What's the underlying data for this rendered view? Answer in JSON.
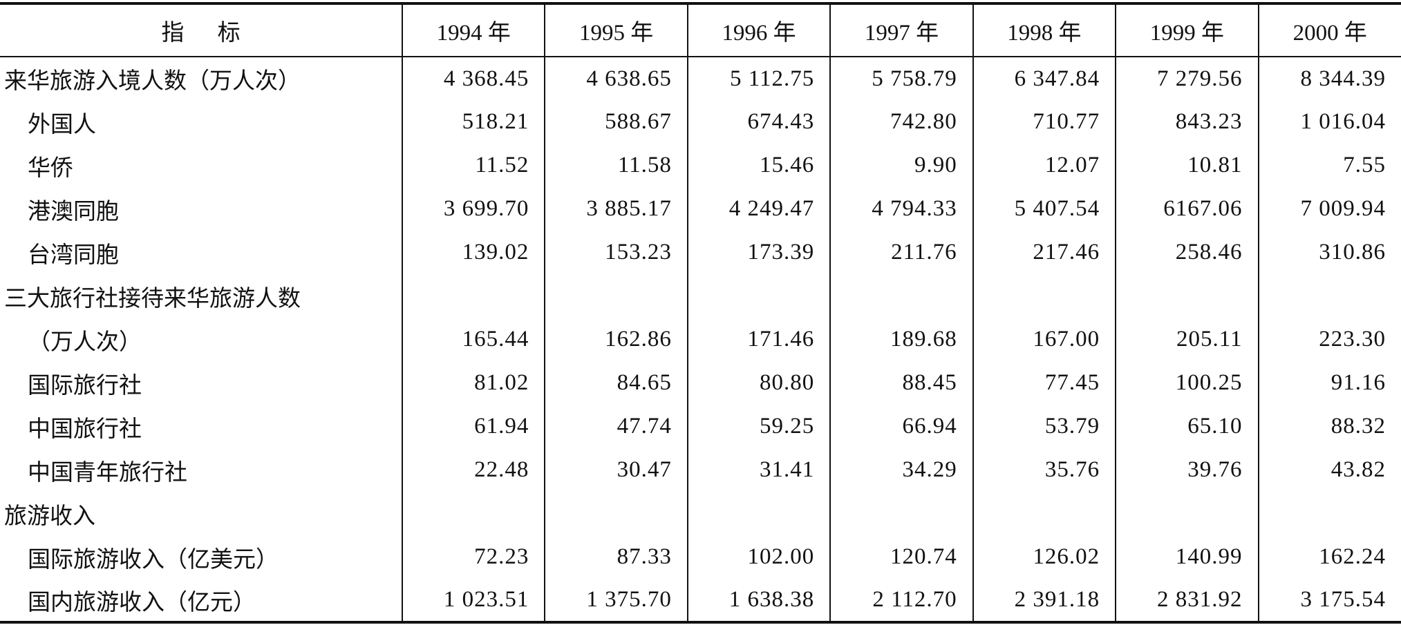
{
  "table": {
    "header": [
      "指 标",
      "1994 年",
      "1995 年",
      "1996 年",
      "1997 年",
      "1998 年",
      "1999 年",
      "2000 年"
    ],
    "rows": [
      [
        "来华旅游入境人数（万人次）",
        "4 368.45",
        "4 638.65",
        "5 112.75",
        "5 758.79",
        "6 347.84",
        "7 279.56",
        "8 344.39"
      ],
      [
        "外国人",
        "518.21",
        "588.67",
        "674.43",
        "742.80",
        "710.77",
        "843.23",
        "1 016.04"
      ],
      [
        "华侨",
        "11.52",
        "11.58",
        "15.46",
        "9.90",
        "12.07",
        "10.81",
        "7.55"
      ],
      [
        "港澳同胞",
        "3 699.70",
        "3 885.17",
        "4 249.47",
        "4 794.33",
        "5 407.54",
        "6167.06",
        "7 009.94"
      ],
      [
        "台湾同胞",
        "139.02",
        "153.23",
        "173.39",
        "211.76",
        "217.46",
        "258.46",
        "310.86"
      ],
      [
        "三大旅行社接待来华旅游人数"
      ],
      [
        "（万人次）",
        "165.44",
        "162.86",
        "171.46",
        "189.68",
        "167.00",
        "205.11",
        "223.30"
      ],
      [
        "国际旅行社",
        "81.02",
        "84.65",
        "80.80",
        "88.45",
        "77.45",
        "100.25",
        "91.16"
      ],
      [
        "中国旅行社",
        "61.94",
        "47.74",
        "59.25",
        "66.94",
        "53.79",
        "65.10",
        "88.32"
      ],
      [
        "中国青年旅行社",
        "22.48",
        "30.47",
        "31.41",
        "34.29",
        "35.76",
        "39.76",
        "43.82"
      ],
      [
        "旅游收入"
      ],
      [
        "国际旅游收入（亿美元）",
        "72.23",
        "87.33",
        "102.00",
        "120.74",
        "126.02",
        "140.99",
        "162.24"
      ],
      [
        "国内旅游收入（亿元）",
        "1 023.51",
        "1 375.70",
        "1 638.38",
        "2 112.70",
        "2 391.18",
        "2 831.92",
        "3 175.54"
      ]
    ]
  }
}
